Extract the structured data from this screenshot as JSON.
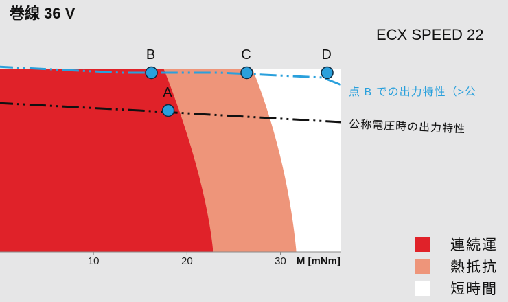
{
  "header": {
    "title": "巻線 36 V",
    "product": "ECX SPEED 22"
  },
  "chart_data": {
    "type": "area",
    "xlabel": "M [mNm]",
    "xticks": [
      10,
      20,
      30
    ],
    "xlim": [
      0,
      36.5
    ],
    "regions": [
      {
        "name": "連続運",
        "color": "#e02229",
        "max_torque_bottom": 22.8,
        "max_torque_top": 17.5
      },
      {
        "name": "熱抵抗",
        "color": "#ee957a",
        "max_torque_bottom": 31.7,
        "max_torque_top": 27.0
      },
      {
        "name": "短時間",
        "color": "#ffffff"
      }
    ],
    "curves": [
      {
        "name": "点 B での出力特性（>公",
        "color": "#2aa0dc"
      },
      {
        "name": "公称電圧時の出力特性",
        "color": "#111111"
      }
    ],
    "points": [
      {
        "label": "A",
        "torque": 18.0
      },
      {
        "label": "B",
        "torque": 16.2
      },
      {
        "label": "C",
        "torque": 26.4
      },
      {
        "label": "D",
        "torque": 35.0
      }
    ]
  },
  "legend": {
    "items": [
      {
        "label": "連続運",
        "color": "#e02229"
      },
      {
        "label": "熱抵抗",
        "color": "#ee957a"
      },
      {
        "label": "短時間",
        "color": "#ffffff"
      }
    ]
  }
}
